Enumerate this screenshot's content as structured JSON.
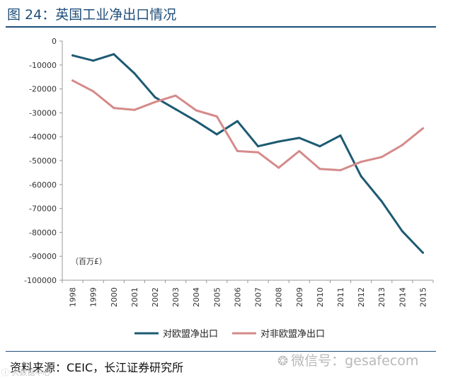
{
  "header": {
    "title": "图 24：英国工业净出口情况"
  },
  "footer": {
    "source": "资料来源：CEIC，长江证券研究所",
    "wechat_text": "微信号：gesafecom",
    "wechat_icon": "wechat-icon",
    "corner_mark": "ⓘ 大数据中心"
  },
  "chart_data": {
    "type": "line",
    "unit_label": "（百万£）",
    "x": [
      "1998",
      "1999",
      "2000",
      "2001",
      "2002",
      "2003",
      "2004",
      "2005",
      "2006",
      "2007",
      "2008",
      "2009",
      "2010",
      "2011",
      "2012",
      "2013",
      "2014",
      "2015"
    ],
    "ylim": [
      -100000,
      0
    ],
    "yticks": [
      0,
      -10000,
      -20000,
      -30000,
      -40000,
      -50000,
      -60000,
      -70000,
      -80000,
      -90000,
      -100000
    ],
    "grid": false,
    "legend_position": "bottom",
    "series": [
      {
        "name": "对欧盟净出口",
        "color": "#1d5a73",
        "values": [
          -6000,
          -8200,
          -5500,
          -13500,
          -23500,
          -28500,
          -33500,
          -39000,
          -33500,
          -44000,
          -42000,
          -40500,
          -44000,
          -39500,
          -56500,
          -67000,
          -79500,
          -88500
        ]
      },
      {
        "name": "对非欧盟净出口",
        "color": "#d58a8a",
        "values": [
          -16500,
          -21000,
          -28000,
          -28800,
          -25500,
          -22800,
          -29000,
          -31500,
          -46000,
          -46500,
          -53000,
          -46000,
          -53500,
          -54000,
          -50500,
          -48500,
          -43500,
          -36500
        ]
      }
    ]
  }
}
